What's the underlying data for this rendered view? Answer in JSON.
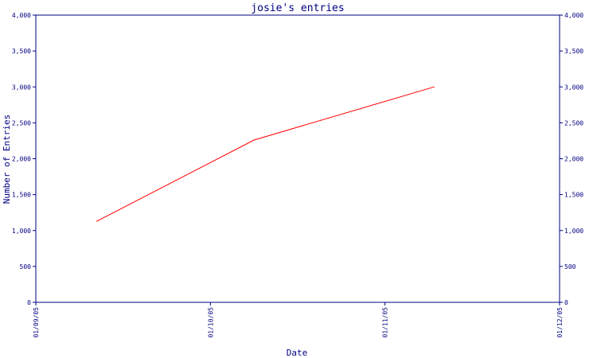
{
  "chart_data": {
    "type": "line",
    "title": "josie's entries",
    "xlabel": "Date",
    "ylabel": "Number of Entries",
    "x_ticks": [
      "01/09/05",
      "01/10/05",
      "01/11/05",
      "01/12/05"
    ],
    "y_ticks": [
      "0",
      "500",
      "1,000",
      "1,500",
      "2,000",
      "2,500",
      "3,000",
      "3,500",
      "4,000"
    ],
    "ylim": [
      0,
      4000
    ],
    "grid": false,
    "colors": {
      "series": "#ff0000",
      "axis": "#000080"
    },
    "series": [
      {
        "points": [
          {
            "x": "01/09/05",
            "x_offset": 0.35,
            "y": 1130
          },
          {
            "x": "01/10/05",
            "x_offset": 0.25,
            "y": 2260
          },
          {
            "x": "01/11/05",
            "x_offset": 0.28,
            "y": 3000
          }
        ]
      }
    ]
  }
}
